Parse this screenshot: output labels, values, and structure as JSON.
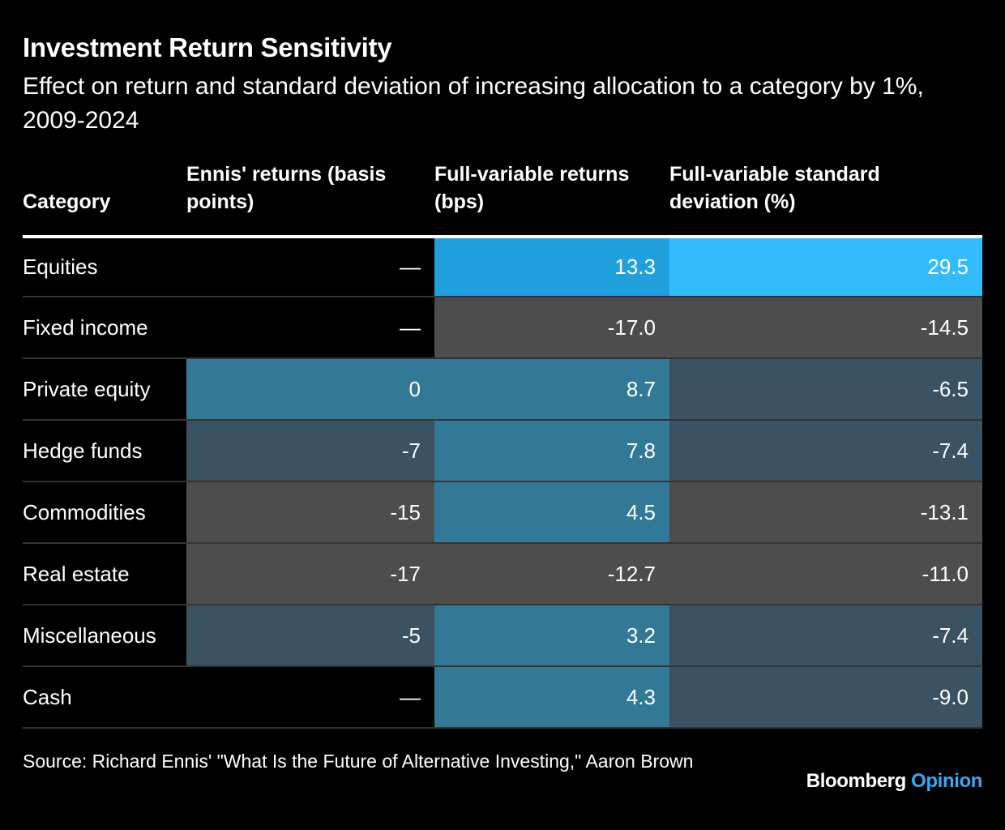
{
  "title": "Investment Return Sensitivity",
  "subtitle": "Effect on return and standard deviation of increasing allocation to a category by 1%, 2009-2024",
  "source": "Source: Richard Ennis' \"What Is the Future of Alternative Investing,\" Aaron Brown",
  "brand": {
    "name": "Bloomberg",
    "suffix": "Opinion"
  },
  "chart_data": {
    "type": "table",
    "columns": [
      "Category",
      "Ennis' returns (basis points)",
      "Full-variable returns (bps)",
      "Full-variable standard deviation (%)"
    ],
    "rows": [
      {
        "category": "Equities",
        "values": [
          "—",
          "13.3",
          "29.5"
        ]
      },
      {
        "category": "Fixed income",
        "values": [
          "—",
          "-17.0",
          "-14.5"
        ]
      },
      {
        "category": "Private equity",
        "values": [
          "0",
          "8.7",
          "-6.5"
        ]
      },
      {
        "category": "Hedge funds",
        "values": [
          "-7",
          "7.8",
          "-7.4"
        ]
      },
      {
        "category": "Commodities",
        "values": [
          "-15",
          "4.5",
          "-13.1"
        ]
      },
      {
        "category": "Real estate",
        "values": [
          "-17",
          "-12.7",
          "-11.0"
        ]
      },
      {
        "category": "Miscellaneous",
        "values": [
          "-5",
          "3.2",
          "-7.4"
        ]
      },
      {
        "category": "Cash",
        "values": [
          "—",
          "4.3",
          "-9.0"
        ]
      }
    ],
    "cell_colors": [
      [
        "#000000",
        "#1fa0dc",
        "#33bbff"
      ],
      [
        "#000000",
        "#4d4d4d",
        "#4d4d4d"
      ],
      [
        "#327998",
        "#327998",
        "#3a5262"
      ],
      [
        "#3a5262",
        "#327998",
        "#3a5262"
      ],
      [
        "#4d4d4d",
        "#327998",
        "#4d4d4d"
      ],
      [
        "#4d4d4d",
        "#4d4d4d",
        "#4d4d4d"
      ],
      [
        "#3a5262",
        "#327998",
        "#3a5262"
      ],
      [
        "#000000",
        "#327998",
        "#3a5262"
      ]
    ]
  }
}
